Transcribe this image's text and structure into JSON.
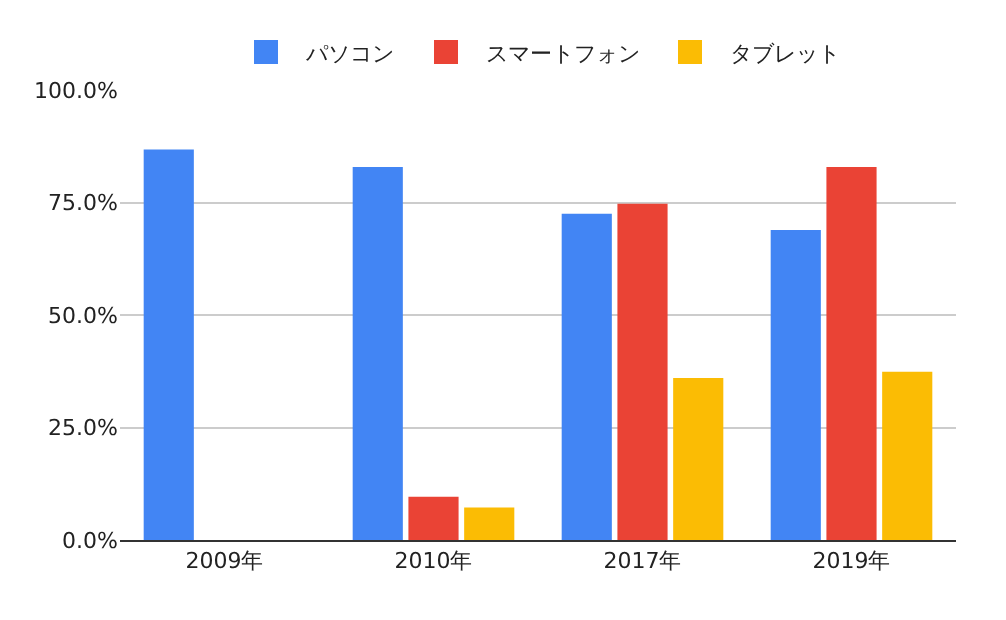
{
  "chart_data": {
    "type": "bar",
    "categories": [
      "2009年",
      "2010年",
      "2017年",
      "2019年"
    ],
    "series": [
      {
        "name": "パソコン",
        "color": "#4285f4",
        "values": [
          86.8,
          82.9,
          72.5,
          68.9
        ]
      },
      {
        "name": "スマートフォン",
        "color": "#ea4335",
        "values": [
          null,
          9.6,
          74.7,
          82.9
        ]
      },
      {
        "name": "タブレット",
        "color": "#fbbc04",
        "values": [
          null,
          7.2,
          36.0,
          37.4
        ]
      }
    ],
    "ylim": [
      0,
      100
    ],
    "yticks": [
      {
        "value": 0,
        "label": "0.0%"
      },
      {
        "value": 25,
        "label": "25.0%"
      },
      {
        "value": 50,
        "label": "50.0%"
      },
      {
        "value": 75,
        "label": "75.0%"
      },
      {
        "value": 100,
        "label": "100.0%"
      }
    ],
    "grid": "y",
    "legend": "top"
  }
}
